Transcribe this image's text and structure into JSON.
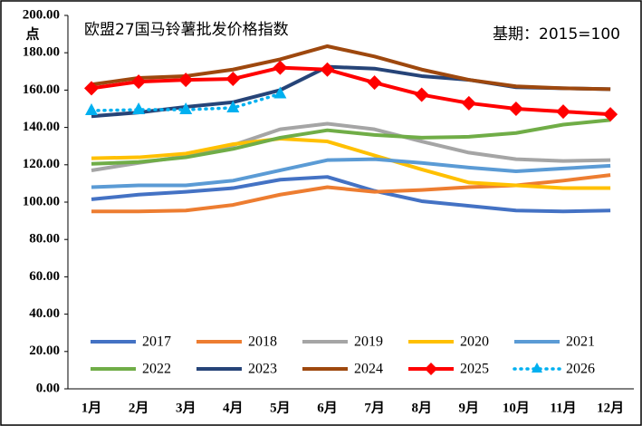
{
  "chart_data": {
    "type": "line",
    "title": "欧盟27国马铃薯批发价格指数",
    "annotation": "基期：2015=100",
    "y_label": "点",
    "categories": [
      "1月",
      "2月",
      "3月",
      "4月",
      "5月",
      "6月",
      "7月",
      "8月",
      "9月",
      "10月",
      "11月",
      "12月"
    ],
    "ylim": [
      0,
      200
    ],
    "yticks": [
      {
        "value": 0,
        "label": "0.00"
      },
      {
        "value": 20,
        "label": "20.00"
      },
      {
        "value": 40,
        "label": "40.00"
      },
      {
        "value": 60,
        "label": "60.00"
      },
      {
        "value": 80,
        "label": "80.00"
      },
      {
        "value": 100,
        "label": "100.00"
      },
      {
        "value": 120,
        "label": "120.00"
      },
      {
        "value": 140,
        "label": "140.00"
      },
      {
        "value": 160,
        "label": "160.00"
      },
      {
        "value": 180,
        "label": "180.00"
      },
      {
        "value": 200,
        "label": "200.00"
      }
    ],
    "series": [
      {
        "name": "2017",
        "color": "#4472c4",
        "values": [
          101.5,
          104,
          105.5,
          107.5,
          112,
          113.5,
          106,
          100.5,
          98,
          95.5,
          95,
          95.5
        ]
      },
      {
        "name": "2018",
        "color": "#ed7d31",
        "values": [
          95,
          95,
          95.5,
          98.5,
          104,
          108,
          105.5,
          106.5,
          108,
          109,
          111.5,
          114.5
        ]
      },
      {
        "name": "2019",
        "color": "#a5a5a5",
        "values": [
          117,
          121,
          124.5,
          130.5,
          139,
          142,
          139,
          132.5,
          126.5,
          123,
          122,
          122.5
        ]
      },
      {
        "name": "2020",
        "color": "#ffc000",
        "values": [
          123.5,
          124,
          126,
          131,
          134,
          132.5,
          125,
          117.5,
          110.5,
          109,
          107.5,
          107.5
        ]
      },
      {
        "name": "2021",
        "color": "#5b9bd5",
        "values": [
          108,
          109,
          109,
          111.5,
          117,
          122.5,
          123,
          121,
          118.5,
          116.5,
          118,
          119.5
        ]
      },
      {
        "name": "2022",
        "color": "#70ad47",
        "values": [
          120.5,
          121.5,
          124,
          128.5,
          134.5,
          138.5,
          136,
          134.5,
          135,
          137,
          141.5,
          144
        ]
      },
      {
        "name": "2023",
        "color": "#264478",
        "values": [
          146,
          148,
          151,
          153.5,
          160,
          172.5,
          171.5,
          167.5,
          165.5,
          161.5,
          161,
          160.5
        ]
      },
      {
        "name": "2024",
        "color": "#9e480e",
        "values": [
          163,
          166.5,
          167.5,
          171,
          176.5,
          183.5,
          178,
          171,
          165.5,
          162,
          161,
          160.5
        ]
      },
      {
        "name": "2025",
        "color": "#ff0000",
        "marker": "diamond",
        "values": [
          161,
          164.5,
          165.5,
          166,
          172,
          171,
          164,
          157.5,
          153,
          150,
          148.5,
          147
        ]
      },
      {
        "name": "2026",
        "color": "#00b0f0",
        "marker": "triangle",
        "dash": "dotted",
        "values": [
          149,
          149.5,
          149.5,
          150.5,
          158,
          null,
          null,
          null,
          null,
          null,
          null,
          null
        ]
      }
    ]
  }
}
